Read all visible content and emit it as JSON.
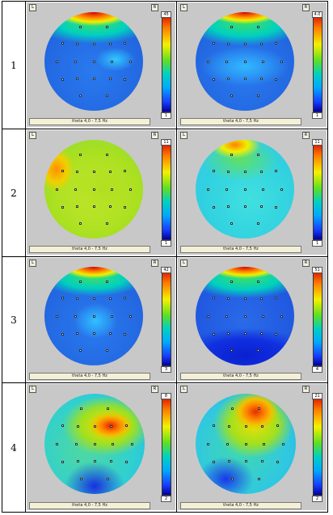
{
  "table": {
    "rows": [
      {
        "label": "1",
        "panels": [
          {
            "max": "45",
            "min": "1",
            "caption": "theta 4,0 - 7,5 Hz"
          },
          {
            "max": "4.0",
            "min": "1",
            "caption": "theta 4,0 - 7,5 Hz"
          }
        ]
      },
      {
        "label": "2",
        "panels": [
          {
            "max": "11",
            "min": "1",
            "caption": "theta 4,0 - 7,5 Hz"
          },
          {
            "max": "11",
            "min": "1",
            "caption": "theta 4,0 - 7,5 Hz"
          }
        ]
      },
      {
        "label": "3",
        "panels": [
          {
            "max": "42",
            "min": "3",
            "caption": "theta 4,0 - 7,5 Hz"
          },
          {
            "max": "51",
            "min": "4",
            "caption": "theta 4,0 - 7,5 Hz"
          }
        ]
      },
      {
        "label": "4",
        "panels": [
          {
            "max": "8",
            "min": "2",
            "caption": "theta 4,0 - 7,5 Hz"
          },
          {
            "max": "21",
            "min": "2",
            "caption": "theta 4,0 - 7,5 Hz"
          }
        ]
      }
    ],
    "corner_left": "L",
    "corner_right": "R"
  },
  "colors": {
    "high": "#d00000",
    "mid": "#f5f000",
    "low": "#0000a0",
    "panel_bg": "#c8c8c8"
  }
}
